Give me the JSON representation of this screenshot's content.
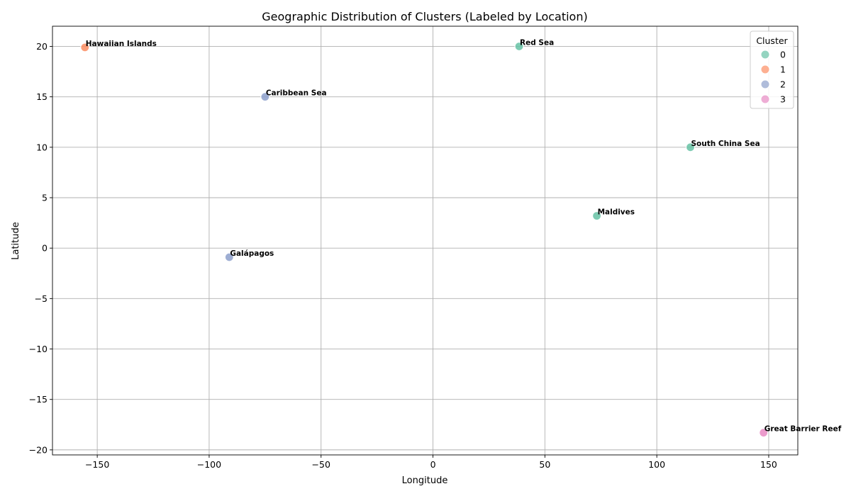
{
  "chart_data": {
    "type": "scatter",
    "title": "Geographic Distribution of Clusters (Labeled by Location)",
    "xlabel": "Longitude",
    "ylabel": "Latitude",
    "xlim": [
      -170,
      163
    ],
    "ylim": [
      -20.5,
      22
    ],
    "xticks": [
      -150,
      -100,
      -50,
      0,
      50,
      100,
      150
    ],
    "yticks": [
      -20,
      -15,
      -10,
      -5,
      0,
      5,
      10,
      15,
      20
    ],
    "grid": true,
    "legend": {
      "title": "Cluster",
      "placement": "top-right",
      "entries": [
        {
          "label": "0",
          "color": "#66c2a5"
        },
        {
          "label": "1",
          "color": "#fc8d62"
        },
        {
          "label": "2",
          "color": "#8da0cb"
        },
        {
          "label": "3",
          "color": "#e78ac3"
        }
      ]
    },
    "points": [
      {
        "label": "Hawaiian Islands",
        "x": -155.5,
        "y": 19.9,
        "cluster": "1"
      },
      {
        "label": "Red Sea",
        "x": 38.5,
        "y": 20.0,
        "cluster": "0"
      },
      {
        "label": "Caribbean Sea",
        "x": -75,
        "y": 15.0,
        "cluster": "2"
      },
      {
        "label": "South China Sea",
        "x": 115,
        "y": 10.0,
        "cluster": "0"
      },
      {
        "label": "Maldives",
        "x": 73.2,
        "y": 3.2,
        "cluster": "0"
      },
      {
        "label": "Galápagos",
        "x": -91,
        "y": -0.9,
        "cluster": "2"
      },
      {
        "label": "Great Barrier Reef",
        "x": 147.7,
        "y": -18.3,
        "cluster": "3"
      }
    ]
  }
}
